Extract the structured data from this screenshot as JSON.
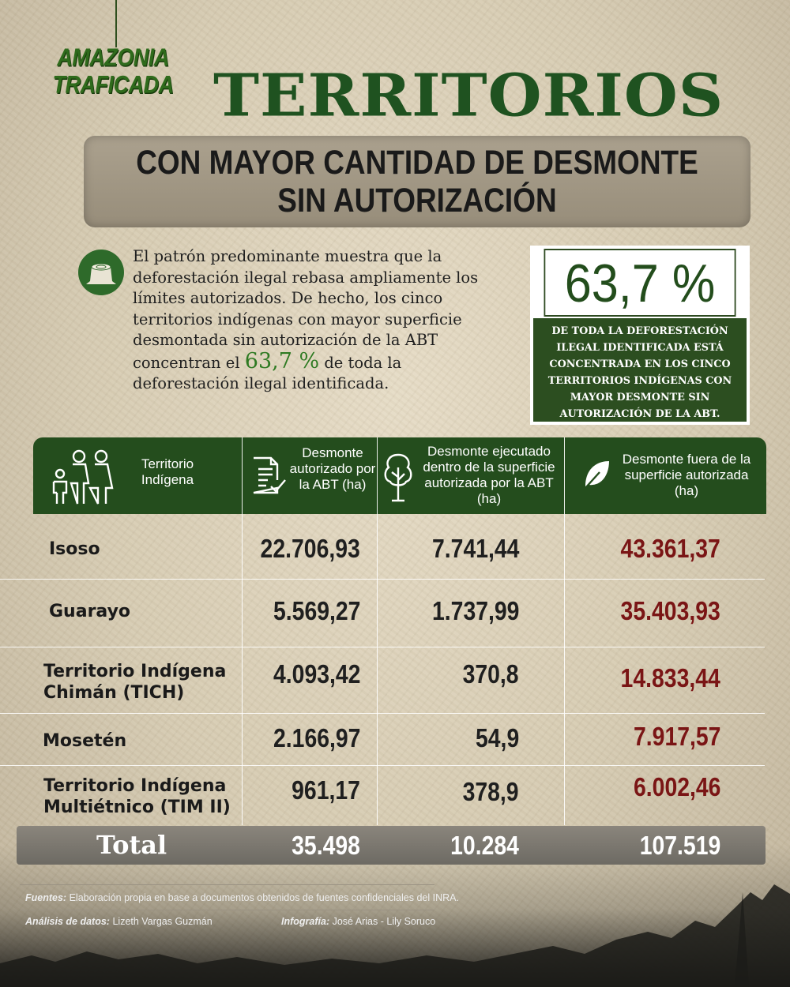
{
  "logo": {
    "line1": "AMAZONIA",
    "line2": "TRAFICADA"
  },
  "title": "TERRITORIOS",
  "subtitle": {
    "line1": "CON MAYOR CANTIDAD DE DESMONTE",
    "line2": "SIN AUTORIZACIÓN"
  },
  "intro": {
    "text_before": "El patrón predominante muestra que la deforestación ilegal rebasa ampliamente los límites autorizados. De hecho, los cinco territorios indígenas con mayor superficie desmontada sin autorización de la ABT concentran el ",
    "highlight": "63,7 %",
    "text_after": " de toda la deforestación ilegal identificada."
  },
  "stat": {
    "value": "63,7 %",
    "description": "DE TODA LA DEFORESTACIÓN ILEGAL IDENTIFICADA ESTÁ CONCENTRADA EN LOS CINCO TERRITORIOS INDÍGENAS CON MAYOR DESMONTE SIN AUTORIZACIÓN DE LA ABT."
  },
  "table": {
    "headers": [
      "Territorio Indígena",
      "Desmonte autorizado por la ABT (ha)",
      "Desmonte ejecutado dentro de la superficie autorizada por la ABT (ha)",
      "Desmonte fuera de la superficie autorizada (ha)"
    ],
    "rows": [
      {
        "name": "Isoso",
        "authorized": "22.706,93",
        "within": "7.741,44",
        "outside": "43.361,37"
      },
      {
        "name": "Guarayo",
        "authorized": "5.569,27",
        "within": "1.737,99",
        "outside": "35.403,93"
      },
      {
        "name": "Territorio Indígena Chimán (TICH)",
        "authorized": "4.093,42",
        "within": "370,8",
        "outside": "14.833,44"
      },
      {
        "name": "Mosetén",
        "authorized": "2.166,97",
        "within": "54,9",
        "outside": "7.917,57"
      },
      {
        "name": "Territorio Indígena Multiétnico (TIM II)",
        "authorized": "961,17",
        "within": "378,9",
        "outside": "6.002,46"
      }
    ],
    "total": {
      "label": "Total",
      "authorized": "35.498",
      "within": "10.284",
      "outside": "107.519"
    }
  },
  "footer": {
    "sources_label": "Fuentes:",
    "sources_text": "Elaboración propia en base a documentos obtenidos de fuentes confidenciales del INRA.",
    "analysis_label": "Análisis de datos:",
    "analysis_text": "Lizeth Vargas Guzmán",
    "infographic_label": "Infografía:",
    "infographic_text": "José Arias - Lily Soruco"
  },
  "colors": {
    "brand_green": "#244d1d",
    "accent_red": "#7a1515",
    "highlight_green": "#2e7a22"
  }
}
